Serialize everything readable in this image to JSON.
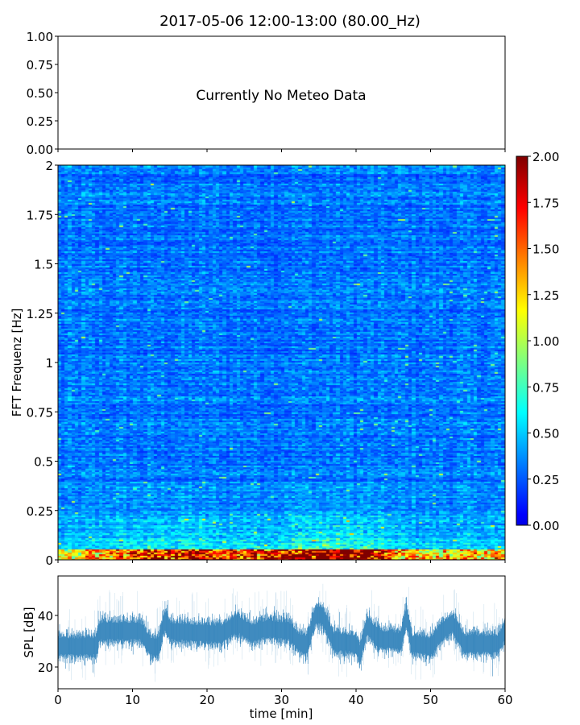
{
  "chart_data": [
    {
      "type": "text",
      "title": "2017-05-06 12:00-13:00 (80.00_Hz)",
      "annotation": "Currently No Meteo Data",
      "ylim": [
        0,
        1
      ],
      "yticks": [
        "0.00",
        "0.25",
        "0.50",
        "0.75",
        "1.00"
      ],
      "xlim": [
        0,
        60
      ]
    },
    {
      "type": "heatmap",
      "ylabel": "FFT Frequenz [Hz]",
      "xlim": [
        0,
        60
      ],
      "ylim": [
        0,
        2
      ],
      "yticks": [
        {
          "v": 0,
          "l": "0"
        },
        {
          "v": 0.25,
          "l": "0.25"
        },
        {
          "v": 0.5,
          "l": "0.5"
        },
        {
          "v": 0.75,
          "l": "0.75"
        },
        {
          "v": 1,
          "l": "1"
        },
        {
          "v": 1.25,
          "l": "1.25"
        },
        {
          "v": 1.5,
          "l": "1.5"
        },
        {
          "v": 1.75,
          "l": "1.75"
        },
        {
          "v": 2,
          "l": "2"
        }
      ],
      "colormap": "jet",
      "clim": [
        0,
        2
      ],
      "colorbar_ticks": [
        "0.00",
        "0.25",
        "0.50",
        "0.75",
        "1.00",
        "1.25",
        "1.50",
        "1.75",
        "2.00"
      ],
      "background_level": 0.3,
      "low_freq_activity": [
        [
          0,
          0.5
        ],
        [
          5,
          0.7
        ],
        [
          10,
          0.9
        ],
        [
          14,
          1.0
        ],
        [
          18,
          1.1
        ],
        [
          22,
          0.8
        ],
        [
          26,
          0.9
        ],
        [
          30,
          1.0
        ],
        [
          34,
          1.3
        ],
        [
          38,
          1.3
        ],
        [
          42,
          1.2
        ],
        [
          46,
          0.7
        ],
        [
          50,
          0.6
        ],
        [
          55,
          0.7
        ],
        [
          60,
          0.6
        ]
      ]
    },
    {
      "type": "area",
      "xlabel": "time [min]",
      "ylabel": "SPL [dB]",
      "xlim": [
        0,
        60
      ],
      "ylim": [
        11.6,
        55.3
      ],
      "xticks": [
        0,
        10,
        20,
        30,
        40,
        50,
        60
      ],
      "yticks": [
        20,
        40
      ],
      "color": "#1f77b4",
      "mean_envelope": [
        [
          0,
          28
        ],
        [
          5,
          28
        ],
        [
          5.6,
          34
        ],
        [
          8,
          34
        ],
        [
          11,
          34
        ],
        [
          12.5,
          28
        ],
        [
          13.5,
          28
        ],
        [
          14.3,
          38
        ],
        [
          15,
          34
        ],
        [
          20,
          33
        ],
        [
          22,
          33
        ],
        [
          24,
          37
        ],
        [
          26,
          33
        ],
        [
          28,
          35
        ],
        [
          31,
          34
        ],
        [
          32.5,
          29
        ],
        [
          33.5,
          29
        ],
        [
          34.5,
          40
        ],
        [
          35.5,
          40
        ],
        [
          37,
          30
        ],
        [
          40,
          29
        ],
        [
          40.5,
          25
        ],
        [
          41.5,
          36
        ],
        [
          43,
          31
        ],
        [
          46,
          30
        ],
        [
          46.8,
          40
        ],
        [
          47.5,
          29
        ],
        [
          50,
          28
        ],
        [
          51.5,
          34
        ],
        [
          53,
          37
        ],
        [
          54.5,
          29
        ],
        [
          59,
          29
        ],
        [
          60,
          34
        ]
      ]
    }
  ]
}
